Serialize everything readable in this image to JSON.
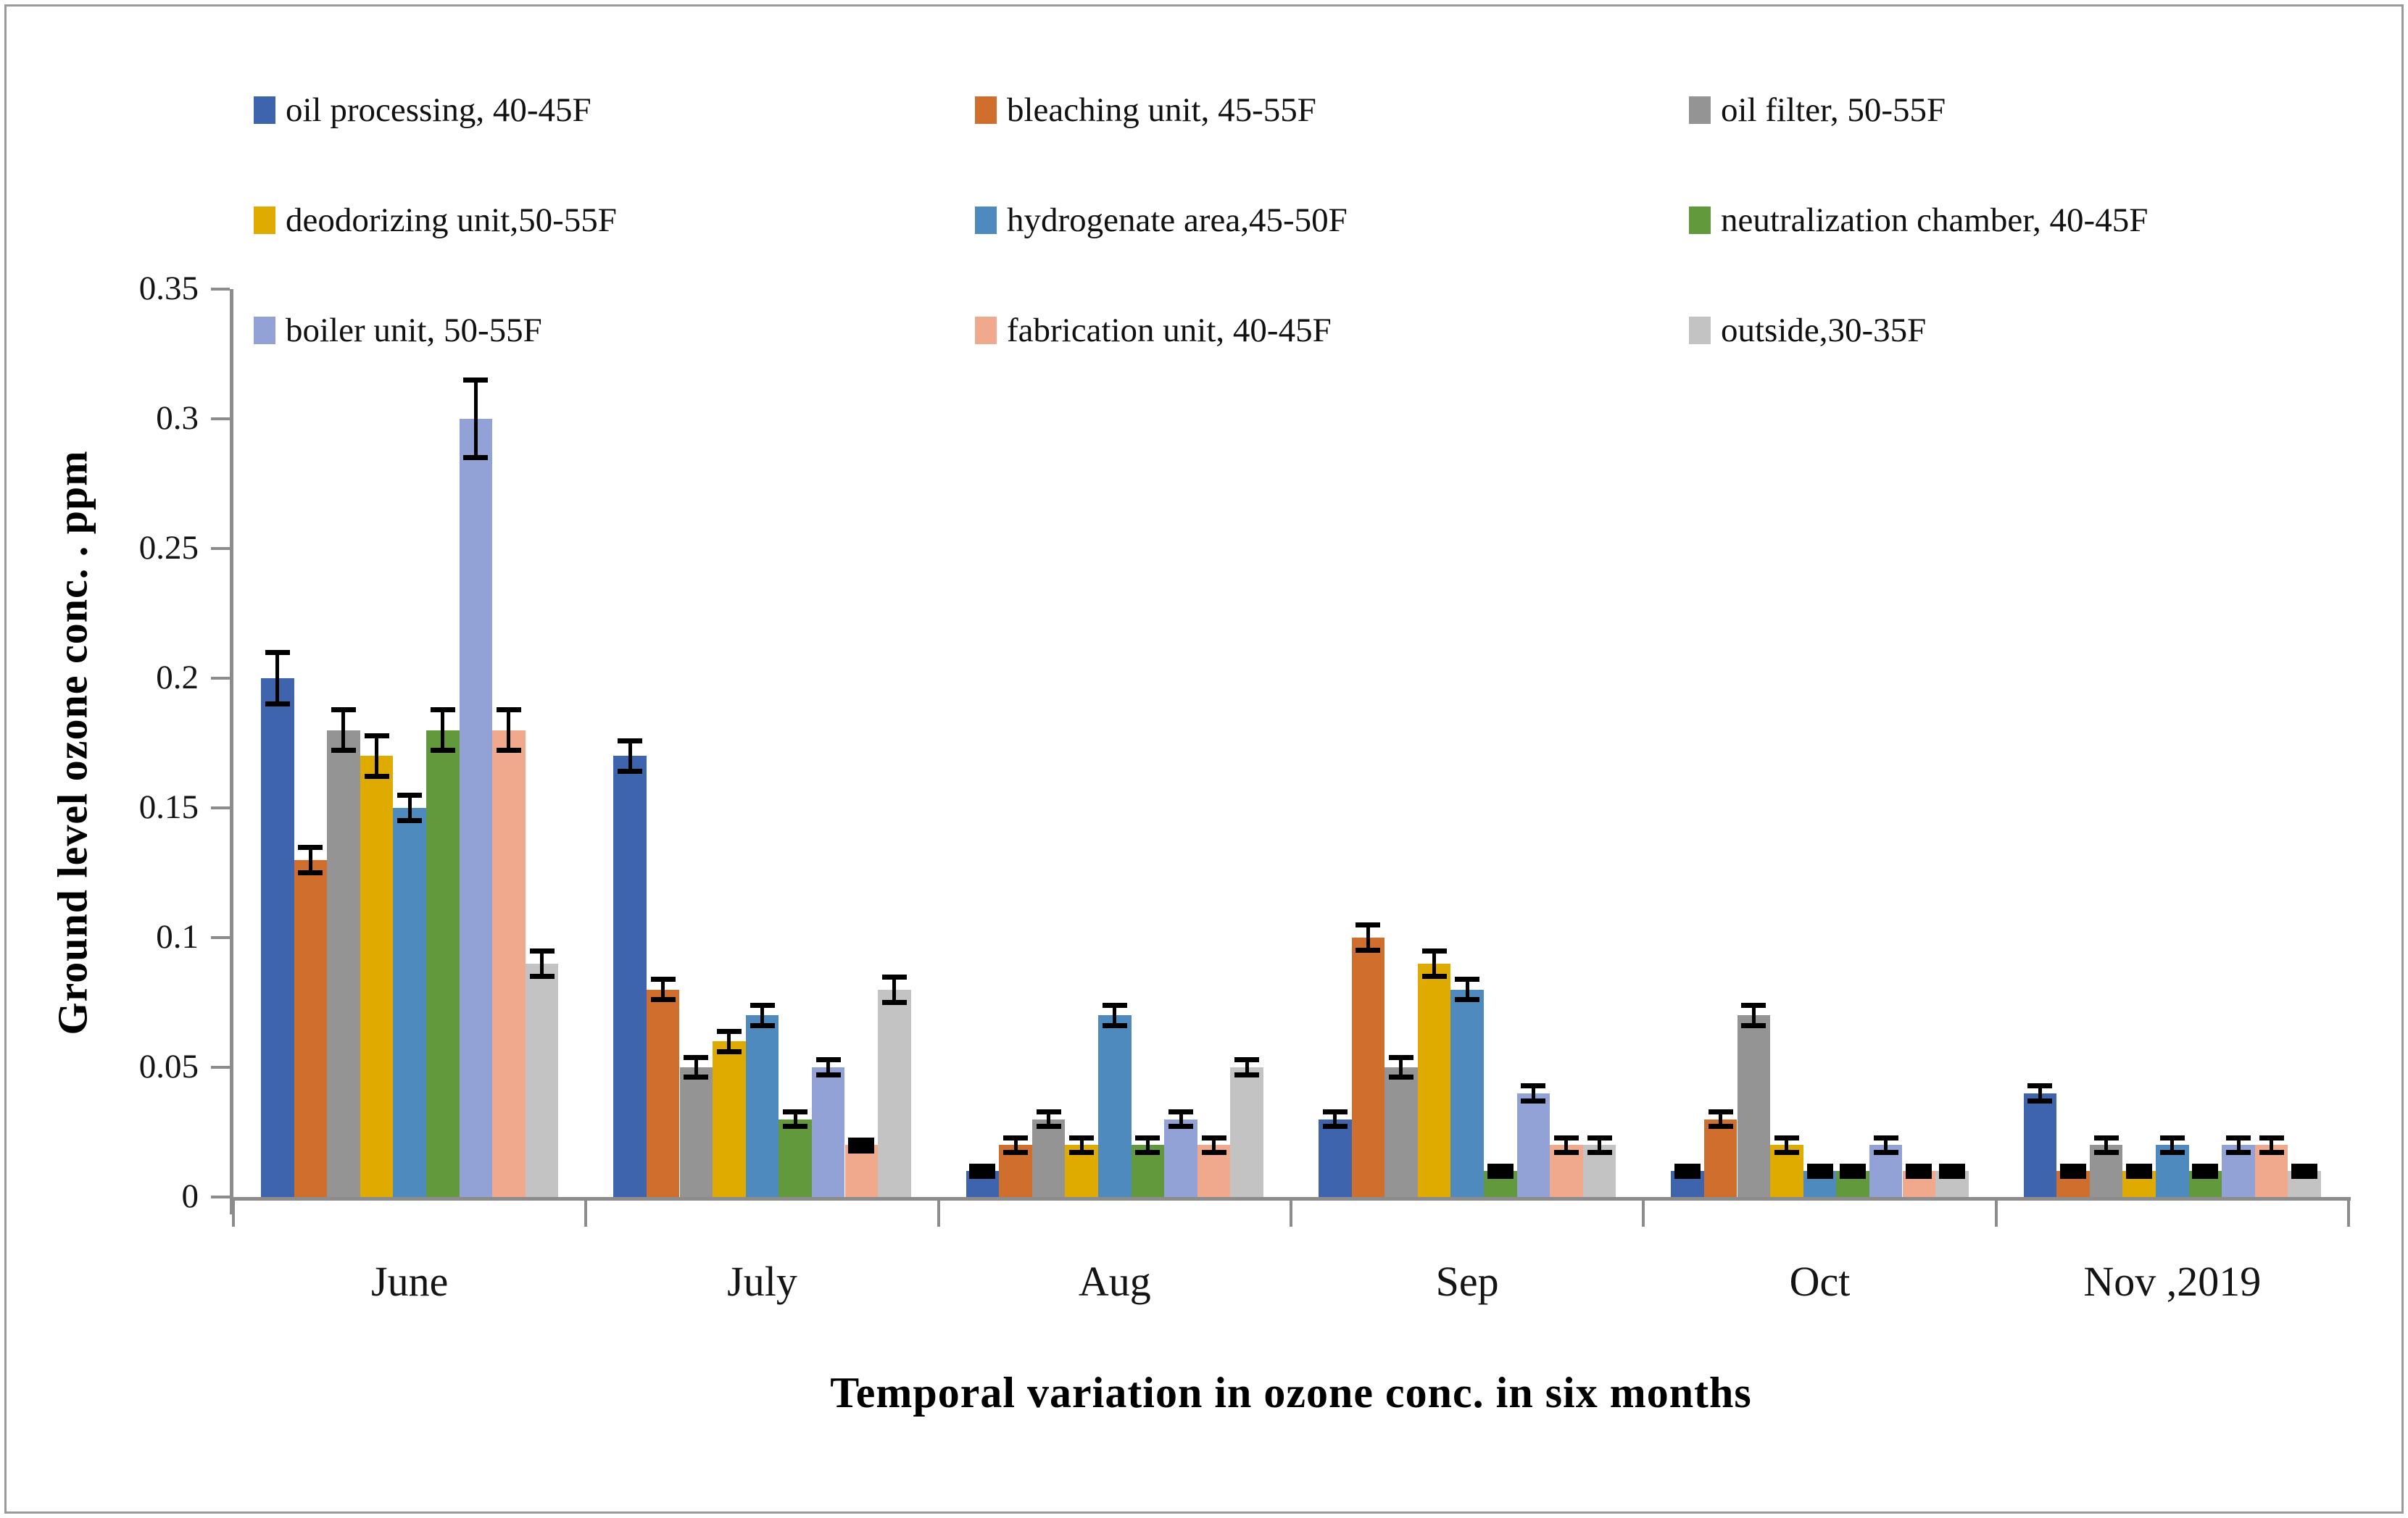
{
  "figure": {
    "border_color": "#9a9a9a",
    "background": "#ffffff",
    "axis_color": "#8c8c8c",
    "error_bar_color": "#000000"
  },
  "chart_data": {
    "type": "bar",
    "title": "",
    "xlabel": "Temporal variation in ozone conc. in six months",
    "ylabel": "Ground level ozone conc. . ppm",
    "categories": [
      "June",
      "July",
      "Aug",
      "Sep",
      "Oct",
      "Nov ,2019"
    ],
    "y_ticks": [
      0.35,
      0.3,
      0.25,
      0.2,
      0.15,
      0.1,
      0.05,
      0
    ],
    "y_tick_labels": [
      "0.35",
      "0.3",
      "0.25",
      "0.2",
      "0.15",
      "0.1",
      "0.05",
      "0"
    ],
    "ylim": [
      0,
      0.35
    ],
    "grid": false,
    "legend_position": "top",
    "error_bars": true,
    "series": [
      {
        "name": "oil processing, 40-45F",
        "color": "#3E64AD",
        "values": [
          0.2,
          0.17,
          0.01,
          0.03,
          0.01,
          0.04
        ],
        "errors": [
          0.01,
          0.006,
          0.002,
          0.003,
          0.002,
          0.003
        ]
      },
      {
        "name": "bleaching unit, 45-55F",
        "color": "#D06F2D",
        "values": [
          0.13,
          0.08,
          0.02,
          0.1,
          0.03,
          0.01
        ],
        "errors": [
          0.005,
          0.004,
          0.003,
          0.005,
          0.003,
          0.002
        ]
      },
      {
        "name": "oil filter, 50-55F",
        "color": "#949494",
        "values": [
          0.18,
          0.05,
          0.03,
          0.05,
          0.07,
          0.02
        ],
        "errors": [
          0.008,
          0.004,
          0.003,
          0.004,
          0.004,
          0.003
        ]
      },
      {
        "name": "deodorizing unit,50-55F",
        "color": "#E0AB00",
        "values": [
          0.17,
          0.06,
          0.02,
          0.09,
          0.02,
          0.01
        ],
        "errors": [
          0.008,
          0.004,
          0.003,
          0.005,
          0.003,
          0.002
        ]
      },
      {
        "name": "hydrogenate area,45-50F",
        "color": "#4F8ABF",
        "values": [
          0.15,
          0.07,
          0.07,
          0.08,
          0.01,
          0.02
        ],
        "errors": [
          0.005,
          0.004,
          0.004,
          0.004,
          0.002,
          0.003
        ]
      },
      {
        "name": "neutralization chamber, 40-45F",
        "color": "#61993C",
        "values": [
          0.18,
          0.03,
          0.02,
          0.01,
          0.01,
          0.01
        ],
        "errors": [
          0.008,
          0.003,
          0.003,
          0.002,
          0.002,
          0.002
        ]
      },
      {
        "name": "boiler unit, 50-55F",
        "color": "#93A2D6",
        "values": [
          0.3,
          0.05,
          0.03,
          0.04,
          0.02,
          0.02
        ],
        "errors": [
          0.015,
          0.003,
          0.003,
          0.003,
          0.003,
          0.003
        ]
      },
      {
        "name": "fabrication unit, 40-45F",
        "color": "#F0A98C",
        "values": [
          0.18,
          0.02,
          0.02,
          0.02,
          0.01,
          0.02
        ],
        "errors": [
          0.008,
          0.002,
          0.003,
          0.003,
          0.002,
          0.003
        ]
      },
      {
        "name": "outside,30-35F",
        "color": "#C3C3C3",
        "values": [
          0.09,
          0.08,
          0.05,
          0.02,
          0.01,
          0.01
        ],
        "errors": [
          0.005,
          0.005,
          0.003,
          0.003,
          0.002,
          0.002
        ]
      }
    ]
  }
}
